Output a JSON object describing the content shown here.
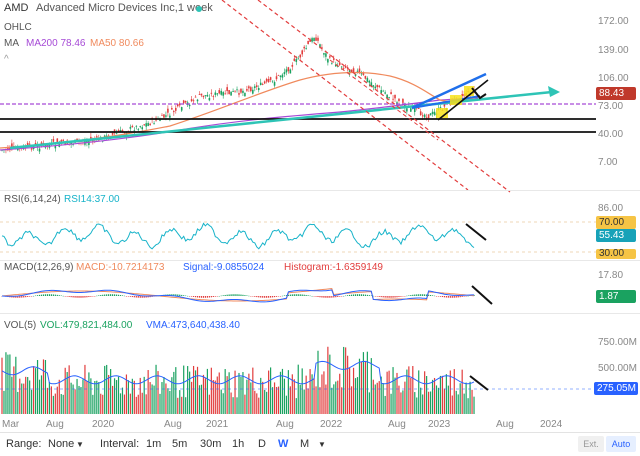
{
  "header": {
    "symbol": "AMD",
    "title": "Advanced Micro Devices Inc,1 week",
    "ohlc_label": "OHLC",
    "ma_label": "MA",
    "ma200": "MA200 78.46",
    "ma50": "MA50 80.66"
  },
  "price_axis": [
    "172.00",
    "139.00",
    "106.00",
    "73.00",
    "40.00",
    "7.00"
  ],
  "price_tag": "88.43",
  "rsi": {
    "label": "RSI(6,14,24)",
    "value": "RSI14:37.00",
    "axis": [
      "86.00",
      "70.00",
      "55.43",
      "30.00"
    ],
    "tag": "55.43",
    "ob": "70.00",
    "os": "30.00"
  },
  "macd": {
    "label": "MACD(12,26,9)",
    "macd": "MACD:-10.7214173",
    "signal": "Signal:-9.0855024",
    "hist": "Histogram:-1.6359149",
    "axis": [
      "17.80"
    ],
    "tag": "1.87"
  },
  "vol": {
    "label": "VOL(5)",
    "vol": "VOL:479,821,484.00",
    "vma": "VMA:473,640,438.40",
    "axis": [
      "750.00M",
      "500.00M"
    ],
    "tag": "275.05M"
  },
  "time_axis": [
    "Mar",
    "Aug",
    "2020",
    "Aug",
    "2021",
    "Aug",
    "2022",
    "Aug",
    "2023",
    "Aug",
    "2024"
  ],
  "bottom": {
    "range_label": "Range:",
    "range_value": "None",
    "interval_label": "Interval:",
    "intervals": [
      "1m",
      "5m",
      "30m",
      "1h",
      "D",
      "W",
      "M"
    ],
    "active_interval": "W",
    "ext": "Ext.",
    "auto": "Auto"
  },
  "colors": {
    "teal": "#2ec4b6",
    "purple": "#a64ad6",
    "orange": "#f08a5d",
    "blue": "#1f6feb",
    "red": "#e23d3d",
    "green": "#1aa260"
  }
}
